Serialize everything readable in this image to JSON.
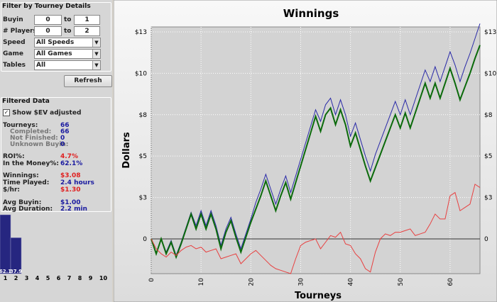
{
  "filter": {
    "title": "Filter by Tourney Details",
    "ranges": [
      {
        "label": "Buyin",
        "from": "0",
        "to_label": "to",
        "to": "1"
      },
      {
        "label": "# Players",
        "from": "0",
        "to_label": "to",
        "to": "2"
      }
    ],
    "selects": [
      {
        "label": "Speed",
        "value": "All Speeds"
      },
      {
        "label": "Game",
        "value": "All Games"
      },
      {
        "label": "Tables",
        "value": "All"
      }
    ],
    "button": "Refresh"
  },
  "filtered": {
    "title": "Filtered Data",
    "checkbox": "Show $EV adjusted",
    "stats": [
      {
        "label": "Tourneys:",
        "value": "66",
        "color": "#1a1aa0"
      },
      {
        "label": "Completed:",
        "value": "66",
        "color": "#1a1aa0"
      },
      {
        "label": "Not Finished:",
        "value": "0",
        "color": "#1a1aa0"
      },
      {
        "label": "Unknown Buyin:",
        "value": "0",
        "color": "#1a1aa0"
      },
      {
        "label": "ROI%:",
        "value": "4.7%",
        "color": "#e02020"
      },
      {
        "label": "In the Money%:",
        "value": "62.1%",
        "color": "#1a1aa0"
      },
      {
        "label": "Winnings:",
        "value": "$3.08",
        "color": "#e02020"
      },
      {
        "label": "Time Played:",
        "value": "2.4 hours",
        "color": "#1a1aa0"
      },
      {
        "label": "$/hr:",
        "value": "$1.30",
        "color": "#e02020"
      },
      {
        "label": "Avg Buyin:",
        "value": "$1.00",
        "color": "#1a1aa0"
      },
      {
        "label": "Avg Duration:",
        "value": "2.2 min",
        "color": "#1a1aa0"
      }
    ]
  },
  "chart_data": [
    {
      "type": "line",
      "title": "Winnings",
      "xlabel": "Tourneys",
      "ylabel": "Dollars",
      "x": [
        0,
        1,
        2,
        3,
        4,
        5,
        6,
        7,
        8,
        9,
        10,
        11,
        12,
        13,
        14,
        15,
        16,
        17,
        18,
        19,
        20,
        21,
        22,
        23,
        24,
        25,
        26,
        27,
        28,
        29,
        30,
        31,
        32,
        33,
        34,
        35,
        36,
        37,
        38,
        39,
        40,
        41,
        42,
        43,
        44,
        45,
        46,
        47,
        48,
        49,
        50,
        51,
        52,
        53,
        54,
        55,
        56,
        57,
        58,
        59,
        60,
        61,
        62,
        63,
        64,
        65,
        66
      ],
      "xlim": [
        0,
        66
      ],
      "xticks": [
        0,
        10,
        20,
        30,
        40,
        50,
        60
      ],
      "ylim": [
        -2.1,
        12.8
      ],
      "yticks": [
        0,
        {
          "value": 2.5,
          "label": "$3"
        },
        {
          "value": 5,
          "label": "$5"
        },
        {
          "value": 7.5,
          "label": "$8"
        },
        {
          "value": 10,
          "label": "$10"
        },
        {
          "value": 12.5,
          "label": "$13"
        }
      ],
      "grid": true,
      "series": [
        {
          "color": "#2a2aa8",
          "values": [
            0,
            -0.9,
            0,
            -0.8,
            -0.1,
            -1.0,
            -0.2,
            0.7,
            1.6,
            0.8,
            1.7,
            0.8,
            1.7,
            0.8,
            -0.4,
            0.6,
            1.3,
            0.3,
            -0.6,
            0.3,
            1.2,
            2.2,
            3.0,
            3.9,
            3.0,
            2.1,
            3.0,
            3.8,
            2.8,
            3.8,
            4.8,
            5.8,
            6.8,
            7.8,
            7.1,
            8.1,
            8.5,
            7.5,
            8.4,
            7.5,
            6.2,
            7.0,
            6.0,
            5.0,
            4.1,
            5.1,
            5.9,
            6.7,
            7.5,
            8.3,
            7.5,
            8.4,
            7.5,
            8.4,
            9.3,
            10.2,
            9.5,
            10.4,
            9.5,
            10.4,
            11.3,
            10.5,
            9.5,
            10.4,
            11.2,
            12.1,
            13.0
          ]
        },
        {
          "color": "#0b6a0b",
          "values": [
            0,
            -0.9,
            0,
            -0.9,
            -0.2,
            -1.1,
            -0.3,
            0.6,
            1.5,
            0.6,
            1.5,
            0.6,
            1.5,
            0.6,
            -0.6,
            0.4,
            1.1,
            0.1,
            -0.8,
            0.1,
            1.0,
            1.8,
            2.6,
            3.5,
            2.6,
            1.7,
            2.6,
            3.4,
            2.4,
            3.4,
            4.4,
            5.4,
            6.4,
            7.4,
            6.5,
            7.5,
            7.9,
            6.9,
            7.8,
            6.9,
            5.6,
            6.4,
            5.4,
            4.4,
            3.5,
            4.3,
            5.1,
            5.9,
            6.7,
            7.5,
            6.7,
            7.6,
            6.7,
            7.6,
            8.5,
            9.4,
            8.5,
            9.4,
            8.5,
            9.4,
            10.3,
            9.4,
            8.4,
            9.2,
            10.0,
            10.9,
            11.7
          ]
        },
        {
          "color": "#e84040",
          "values": [
            0,
            -0.6,
            -0.9,
            -1.1,
            -0.8,
            -1.0,
            -0.7,
            -0.5,
            -0.4,
            -0.6,
            -0.5,
            -0.8,
            -0.7,
            -0.6,
            -1.2,
            -1.1,
            -1.0,
            -0.9,
            -1.5,
            -1.2,
            -0.9,
            -0.7,
            -1.0,
            -1.3,
            -1.6,
            -1.8,
            -1.9,
            -2.0,
            -2.1,
            -1.2,
            -0.4,
            -0.2,
            -0.1,
            0.0,
            -0.6,
            -0.2,
            0.2,
            0.1,
            0.4,
            -0.3,
            -0.4,
            -0.9,
            -1.2,
            -1.8,
            -2.0,
            -0.8,
            0.0,
            0.3,
            0.2,
            0.4,
            0.4,
            0.5,
            0.6,
            0.2,
            0.3,
            0.4,
            0.9,
            1.5,
            1.2,
            1.2,
            2.6,
            2.8,
            1.7,
            1.9,
            2.1,
            3.3,
            3.1
          ]
        }
      ]
    },
    {
      "type": "bar",
      "categories": [
        "1",
        "2",
        "3",
        "4",
        "5",
        "6",
        "7",
        "8",
        "9",
        "10"
      ],
      "values": [
        62.1,
        37.9,
        0,
        0,
        0,
        0,
        0,
        0,
        0,
        0
      ],
      "ylim": [
        0,
        62.1
      ],
      "color": "#262680"
    }
  ]
}
